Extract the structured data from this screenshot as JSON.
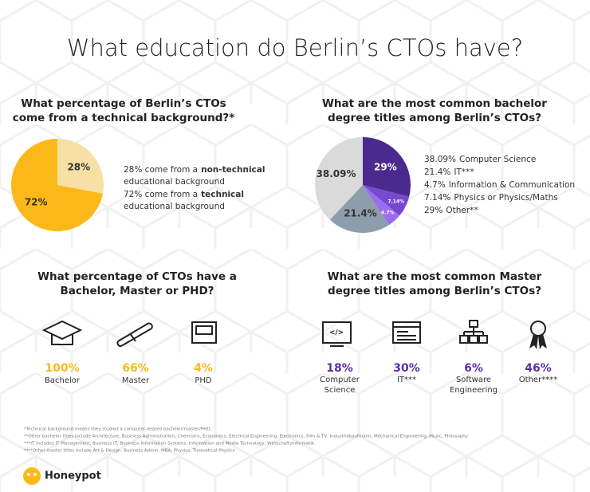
{
  "title": "What education do Berlin’s CTOs have?",
  "chart_data": [
    {
      "type": "pie",
      "title_lines": [
        "What percentage of Berlin’s CTOs",
        "come from a technical background?*"
      ],
      "values": [
        28,
        72
      ],
      "value_labels": [
        "28%",
        "72%"
      ],
      "colors": [
        "#f6e0a6",
        "#fbb919"
      ],
      "direction": "clockwise",
      "legend": [
        {
          "text": "28% come from a",
          "emphasis": "non-technical",
          "continuation": "educational background"
        },
        {
          "text": "72% come from a",
          "emphasis": "technical",
          "continuation": "educational background"
        }
      ]
    },
    {
      "type": "pie",
      "title_lines": [
        "What are the most common bachelor",
        "degree titles among Berlin’s CTOs?"
      ],
      "categories": [
        "Computer Science",
        "IT***",
        "Information & Communication",
        "Physics or Physics/Maths",
        "Other**"
      ],
      "values": [
        38.09,
        21.4,
        4.7,
        7.14,
        29
      ],
      "value_labels": [
        "38.09%",
        "21.4%",
        "4.7%",
        "7.14%",
        "29%"
      ],
      "colors": [
        "#dadada",
        "#8e9dab",
        "#9a6cf0",
        "#7549d2",
        "#4a2a8e"
      ],
      "direction": "counterclockwise"
    }
  ],
  "degrees": {
    "title_lines": [
      "What percentage of CTOs have a",
      "Bachelor, Master or PHD?"
    ],
    "items": [
      {
        "percent": "100%",
        "label": "Bachelor"
      },
      {
        "percent": "66%",
        "label": "Master"
      },
      {
        "percent": "4%",
        "label": "PHD"
      }
    ]
  },
  "masters": {
    "title_lines": [
      "What are the most common Master",
      "degree titles among Berlin’s CTOs?"
    ],
    "items": [
      {
        "percent": "18%",
        "label_lines": [
          "Computer",
          "Science"
        ]
      },
      {
        "percent": "30%",
        "label_lines": [
          "IT***"
        ]
      },
      {
        "percent": "6%",
        "label_lines": [
          "Software",
          "Engineering"
        ]
      },
      {
        "percent": "46%",
        "label_lines": [
          "Other****"
        ]
      }
    ]
  },
  "footnotes": [
    "*Technical background means they studied a computer-related bachelor/master/PHD.",
    "**Other bachelor titles include Architecture, Business Administration, Chemistry, Economics, Electrical Engineering, Electronics, Film & TV, Industriekaufmann, Mechanical Engineering, Music, Philosophy",
    "***IT includes IT Management, Business IT, Business Information Systems, Information and Media Technology, Wirtschaftsinformatik.",
    "****Other master titles include Art & Design, Business Admin, MBA, Physics, Theoretical Physics"
  ],
  "brand": "Honeypot"
}
